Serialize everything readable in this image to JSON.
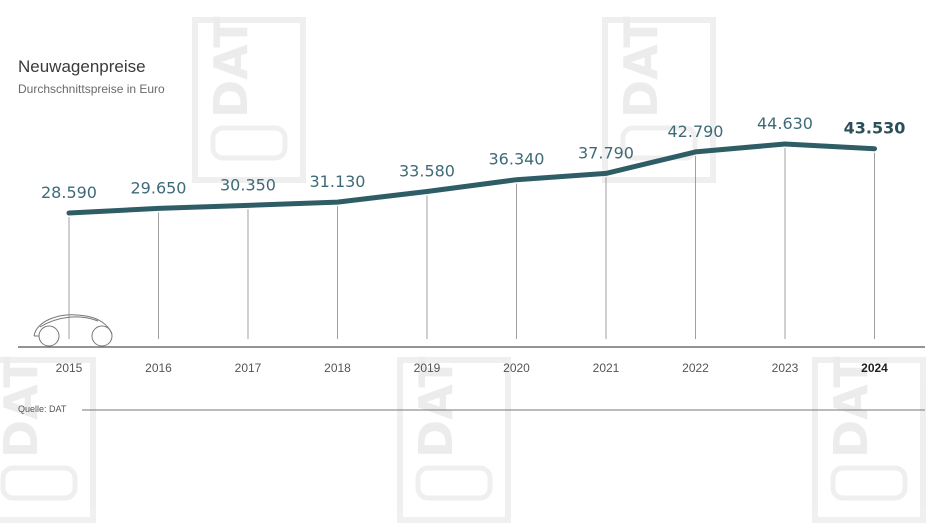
{
  "header": {
    "title": "Neuwagenpreise",
    "subtitle": "Durchschnittspreise in Euro"
  },
  "footer": {
    "source": "Quelle: DAT"
  },
  "watermark": {
    "text": "DAT"
  },
  "colors": {
    "line": "#2f5d66",
    "label": "#3f6a78",
    "axis": "#555555",
    "guide": "#888888"
  },
  "chart_data": {
    "type": "line",
    "title": "Neuwagenpreise",
    "subtitle": "Durchschnittspreise in Euro",
    "xlabel": "",
    "ylabel": "",
    "x": [
      "2015",
      "2016",
      "2017",
      "2018",
      "2019",
      "2020",
      "2021",
      "2022",
      "2023",
      "2024"
    ],
    "values": [
      28590,
      29650,
      30350,
      31130,
      33580,
      36340,
      37790,
      42790,
      44630,
      43530
    ],
    "value_labels": [
      "28.590",
      "29.650",
      "30.350",
      "31.130",
      "33.580",
      "36.340",
      "37.790",
      "42.790",
      "44.630",
      "43.530"
    ],
    "highlight_last": true,
    "grid": false,
    "legend": "none"
  }
}
